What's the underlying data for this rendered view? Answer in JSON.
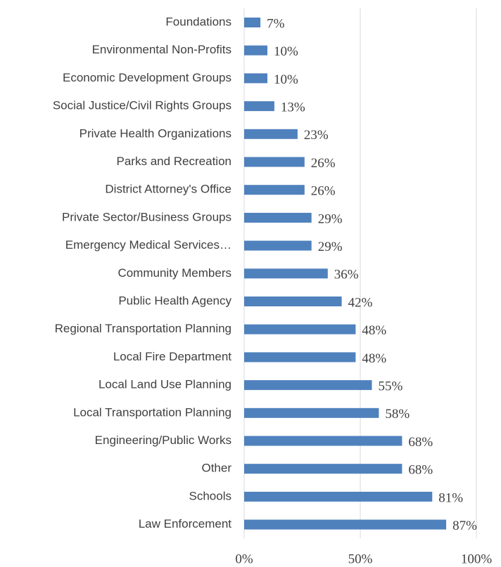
{
  "chart_data": {
    "type": "barh",
    "categories": [
      "Foundations",
      "Environmental Non-Profits",
      "Economic Development Groups",
      "Social Justice/Civil Rights Groups",
      "Private Health Organizations",
      "Parks and Recreation",
      "District Attorney's Office",
      "Private Sector/Business Groups",
      "Emergency Medical Services…",
      "Community Members",
      "Public Health Agency",
      "Regional Transportation Planning",
      "Local Fire Department",
      "Local Land Use Planning",
      "Local Transportation Planning",
      "Engineering/Public Works",
      "Other",
      "Schools",
      "Law Enforcement"
    ],
    "values": [
      7,
      10,
      10,
      13,
      23,
      26,
      26,
      29,
      29,
      36,
      42,
      48,
      48,
      55,
      58,
      68,
      68,
      81,
      87
    ],
    "value_labels": [
      "7%",
      "10%",
      "10%",
      "13%",
      "23%",
      "26%",
      "26%",
      "29%",
      "29%",
      "36%",
      "42%",
      "48%",
      "48%",
      "55%",
      "58%",
      "68%",
      "68%",
      "81%",
      "87%"
    ],
    "color": "#4f81bd",
    "xlim": [
      0,
      100
    ],
    "xticks": [
      {
        "value": 0,
        "label": "0%"
      },
      {
        "value": 50,
        "label": "50%"
      },
      {
        "value": 100,
        "label": "100%"
      }
    ],
    "grid": true
  }
}
